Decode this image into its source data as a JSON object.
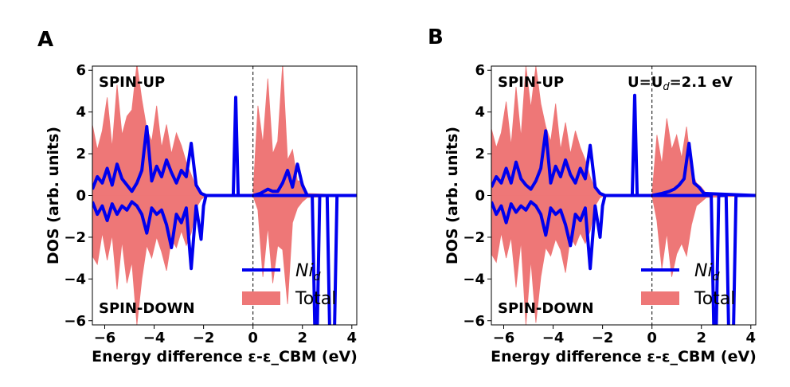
{
  "chart_data": [
    {
      "panel": "A",
      "type": "line",
      "xlabel": "Energy difference ε-ε_CBM (eV)",
      "ylabel": "DOS (arb. units)",
      "xlim": [
        -6.5,
        4.2
      ],
      "ylim": [
        -6.2,
        6.2
      ],
      "xticks": [
        -6,
        -4,
        -2,
        0,
        2,
        4
      ],
      "yticks": [
        -6,
        -4,
        -2,
        0,
        2,
        4,
        6
      ],
      "annotations": {
        "top_left": "SPIN-UP",
        "bottom_left": "SPIN-DOWN"
      },
      "cbm_line_x": 0,
      "legend": {
        "location": "lower-right",
        "ni_label": "Ni",
        "ni_sub": "d",
        "total_label": "Total"
      },
      "series": [
        {
          "name": "Ni_d spin-up",
          "x": [
            -6.5,
            -6.3,
            -6.1,
            -5.9,
            -5.7,
            -5.5,
            -5.3,
            -5.1,
            -4.9,
            -4.7,
            -4.5,
            -4.3,
            -4.1,
            -3.9,
            -3.7,
            -3.5,
            -3.3,
            -3.1,
            -2.9,
            -2.7,
            -2.5,
            -2.3,
            -2.1,
            -1.9,
            -1.0,
            -0.8,
            -0.7,
            -0.6,
            -0.4,
            0.0,
            0.3,
            0.6,
            0.8,
            1.0,
            1.2,
            1.4,
            1.6,
            1.8,
            2.0,
            2.2,
            4.2
          ],
          "values": [
            0.3,
            0.9,
            0.6,
            1.3,
            0.5,
            1.5,
            0.8,
            0.5,
            0.2,
            0.6,
            1.2,
            3.3,
            0.7,
            1.4,
            0.9,
            1.7,
            1.1,
            0.6,
            1.2,
            0.9,
            2.5,
            0.5,
            0.1,
            0,
            0,
            0,
            4.7,
            0,
            0,
            0,
            0.1,
            0.3,
            0.2,
            0.2,
            0.6,
            1.2,
            0.4,
            1.5,
            0.5,
            0,
            0
          ]
        },
        {
          "name": "Ni_d spin-down",
          "x": [
            -6.5,
            -6.3,
            -6.1,
            -5.9,
            -5.7,
            -5.5,
            -5.3,
            -5.1,
            -4.9,
            -4.7,
            -4.5,
            -4.3,
            -4.1,
            -3.9,
            -3.7,
            -3.5,
            -3.3,
            -3.1,
            -2.9,
            -2.7,
            -2.5,
            -2.3,
            -2.1,
            -2.0,
            -1.9,
            0.0,
            2.4,
            2.5,
            2.55,
            2.6,
            2.7,
            3.0,
            3.1,
            3.2,
            3.25,
            3.3,
            3.4,
            4.2
          ],
          "values": [
            -0.3,
            -0.9,
            -0.5,
            -1.2,
            -0.4,
            -0.9,
            -0.5,
            -0.7,
            -0.3,
            -0.5,
            -0.9,
            -1.8,
            -0.6,
            -0.9,
            -0.7,
            -1.4,
            -2.5,
            -0.9,
            -1.3,
            -0.6,
            -3.5,
            -0.5,
            -2.1,
            -0.5,
            0,
            0,
            0,
            -6.3,
            -6.3,
            -6.3,
            0,
            0,
            -6.3,
            -6.3,
            -6.3,
            -6.3,
            0,
            0
          ]
        },
        {
          "name": "Total spin-up (envelope)",
          "x": [
            -6.5,
            -6.3,
            -6.1,
            -5.9,
            -5.7,
            -5.5,
            -5.3,
            -5.1,
            -4.9,
            -4.7,
            -4.5,
            -4.3,
            -4.1,
            -3.9,
            -3.7,
            -3.5,
            -3.3,
            -3.1,
            -2.9,
            -2.7,
            -2.5,
            -2.3,
            -2.1,
            -1.9,
            0.0,
            0.2,
            0.4,
            0.6,
            0.8,
            1.0,
            1.2,
            1.4,
            1.6,
            1.8,
            2.0,
            2.2,
            4.2
          ],
          "values": [
            3.4,
            2.2,
            3.1,
            4.7,
            2.3,
            5.3,
            2.9,
            3.8,
            4.1,
            6.3,
            4.6,
            3.2,
            2.6,
            4.3,
            2.3,
            3.4,
            2.0,
            3.0,
            2.4,
            1.6,
            1.0,
            0.4,
            0.2,
            0,
            0,
            4.3,
            2.5,
            5.6,
            2.0,
            2.6,
            6.3,
            1.7,
            2.2,
            0.7,
            0.7,
            0.1,
            0
          ]
        },
        {
          "name": "Total spin-down (envelope)",
          "x": [
            -6.5,
            -6.3,
            -6.1,
            -5.9,
            -5.7,
            -5.5,
            -5.3,
            -5.1,
            -4.9,
            -4.7,
            -4.5,
            -4.3,
            -4.1,
            -3.9,
            -3.7,
            -3.5,
            -3.3,
            -3.1,
            -2.9,
            -2.7,
            -2.5,
            -2.3,
            -2.1,
            -1.9,
            0.0,
            0.2,
            0.4,
            0.6,
            0.8,
            1.0,
            1.2,
            1.4,
            1.6,
            1.8,
            2.0,
            2.2,
            4.2
          ],
          "values": [
            -2.9,
            -3.3,
            -1.8,
            -3.1,
            -1.9,
            -4.5,
            -2.2,
            -4.2,
            -3.2,
            -6.2,
            -4.0,
            -2.4,
            -3.0,
            -2.0,
            -2.7,
            -3.6,
            -2.1,
            -2.5,
            -1.7,
            -2.4,
            -1.8,
            -0.6,
            -0.2,
            0,
            0,
            -0.7,
            -3.9,
            -1.5,
            -4.2,
            -2.4,
            -2.6,
            -5.2,
            -1.3,
            -0.6,
            -0.3,
            -0.1,
            0
          ]
        }
      ]
    },
    {
      "panel": "B",
      "type": "line",
      "xlabel": "Energy difference ε-ε_CBM (eV)",
      "ylabel": "DOS (arb. units)",
      "xlim": [
        -6.5,
        4.2
      ],
      "ylim": [
        -6.2,
        6.2
      ],
      "xticks": [
        -6,
        -4,
        -2,
        0,
        2,
        4
      ],
      "yticks": [
        -6,
        -4,
        -2,
        0,
        2,
        4,
        6
      ],
      "annotations": {
        "top_left": "SPIN-UP",
        "bottom_left": "SPIN-DOWN",
        "top_right_main": "U=U",
        "top_right_sub": "d",
        "top_right_tail": "=2.1 eV"
      },
      "cbm_line_x": 0,
      "legend": {
        "location": "lower-right",
        "ni_label": "Ni",
        "ni_sub": "d",
        "total_label": "Total"
      },
      "series": [
        {
          "name": "Ni_d spin-up",
          "x": [
            -6.5,
            -6.3,
            -6.1,
            -5.9,
            -5.7,
            -5.5,
            -5.3,
            -5.1,
            -4.9,
            -4.7,
            -4.5,
            -4.3,
            -4.1,
            -3.9,
            -3.7,
            -3.5,
            -3.3,
            -3.1,
            -2.9,
            -2.7,
            -2.5,
            -2.3,
            -2.1,
            -1.9,
            -1.0,
            -0.8,
            -0.7,
            -0.6,
            -0.4,
            0.0,
            0.4,
            0.7,
            0.9,
            1.1,
            1.3,
            1.5,
            1.7,
            1.9,
            2.1,
            4.2
          ],
          "values": [
            0.4,
            0.9,
            0.6,
            1.3,
            0.6,
            1.6,
            0.8,
            0.5,
            0.3,
            0.7,
            1.3,
            3.1,
            0.6,
            1.4,
            0.9,
            1.7,
            1.0,
            0.6,
            1.3,
            0.8,
            2.4,
            0.4,
            0.1,
            0,
            0,
            0,
            4.8,
            0,
            0,
            0,
            0.1,
            0.2,
            0.3,
            0.5,
            0.8,
            2.5,
            0.6,
            0.4,
            0.1,
            0
          ]
        },
        {
          "name": "Ni_d spin-down",
          "x": [
            -6.5,
            -6.3,
            -6.1,
            -5.9,
            -5.7,
            -5.5,
            -5.3,
            -5.1,
            -4.9,
            -4.7,
            -4.5,
            -4.3,
            -4.1,
            -3.9,
            -3.7,
            -3.5,
            -3.3,
            -3.1,
            -2.9,
            -2.7,
            -2.5,
            -2.3,
            -2.1,
            -2.0,
            -1.9,
            0.0,
            2.4,
            2.5,
            2.55,
            2.6,
            2.7,
            3.0,
            3.1,
            3.2,
            3.25,
            3.3,
            3.4,
            4.2
          ],
          "values": [
            -0.3,
            -0.9,
            -0.5,
            -1.3,
            -0.4,
            -0.8,
            -0.5,
            -0.7,
            -0.3,
            -0.5,
            -0.9,
            -1.9,
            -0.6,
            -0.9,
            -0.7,
            -1.4,
            -2.4,
            -0.9,
            -1.2,
            -0.6,
            -3.5,
            -0.5,
            -2.0,
            -0.5,
            0,
            0,
            0,
            -6.3,
            -6.3,
            -6.3,
            0,
            0,
            -6.3,
            -6.3,
            -6.3,
            -6.3,
            0,
            0
          ]
        },
        {
          "name": "Total spin-up (envelope)",
          "x": [
            -6.5,
            -6.3,
            -6.1,
            -5.9,
            -5.7,
            -5.5,
            -5.3,
            -5.1,
            -4.9,
            -4.7,
            -4.5,
            -4.3,
            -4.1,
            -3.9,
            -3.7,
            -3.5,
            -3.3,
            -3.1,
            -2.9,
            -2.7,
            -2.5,
            -2.3,
            -2.1,
            -1.9,
            0.0,
            0.2,
            0.4,
            0.6,
            0.8,
            1.0,
            1.2,
            1.4,
            1.6,
            1.8,
            2.0,
            2.2,
            4.2
          ],
          "values": [
            3.2,
            2.3,
            3.0,
            4.5,
            2.4,
            5.2,
            2.8,
            6.2,
            4.2,
            6.2,
            4.4,
            3.3,
            2.6,
            4.4,
            2.2,
            3.5,
            2.0,
            3.1,
            2.3,
            1.7,
            0.9,
            0.3,
            0.1,
            0,
            0,
            2.9,
            1.5,
            3.7,
            2.2,
            2.9,
            1.8,
            3.3,
            1.2,
            0.6,
            0.4,
            0.1,
            0
          ]
        },
        {
          "name": "Total spin-down (envelope)",
          "x": [
            -6.5,
            -6.3,
            -6.1,
            -5.9,
            -5.7,
            -5.5,
            -5.3,
            -5.1,
            -4.9,
            -4.7,
            -4.5,
            -4.3,
            -4.1,
            -3.9,
            -3.7,
            -3.5,
            -3.3,
            -3.1,
            -2.9,
            -2.7,
            -2.5,
            -2.3,
            -2.1,
            -1.9,
            0.0,
            0.2,
            0.4,
            0.6,
            0.8,
            1.0,
            1.2,
            1.4,
            1.6,
            1.8,
            2.0,
            2.2,
            4.2
          ],
          "values": [
            -2.8,
            -3.2,
            -1.8,
            -3.0,
            -2.0,
            -4.4,
            -2.2,
            -6.2,
            -3.1,
            -6.1,
            -3.9,
            -2.5,
            -2.9,
            -2.1,
            -2.6,
            -3.7,
            -2.0,
            -2.4,
            -1.8,
            -2.3,
            -1.7,
            -0.5,
            -0.1,
            0,
            0,
            -1.2,
            -3.5,
            -1.8,
            -3.9,
            -2.8,
            -2.3,
            -2.9,
            -1.4,
            -0.5,
            -0.3,
            -0.1,
            0
          ]
        }
      ]
    }
  ],
  "style": {
    "ni_color": "#0000ee",
    "total_color": "#ee7777",
    "dash_color": "#000000"
  }
}
